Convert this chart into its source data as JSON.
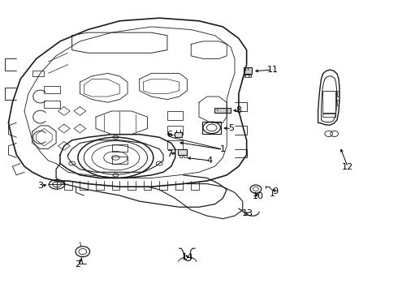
{
  "background_color": "#ffffff",
  "line_color": "#1a1a1a",
  "figsize": [
    4.9,
    3.6
  ],
  "dpi": 100,
  "label_positions": {
    "1": [
      0.56,
      0.485,
      0.495,
      0.51
    ],
    "2": [
      0.195,
      0.095,
      0.205,
      0.135
    ],
    "3": [
      0.1,
      0.365,
      0.14,
      0.368
    ],
    "4": [
      0.525,
      0.45,
      0.46,
      0.465
    ],
    "5": [
      0.58,
      0.56,
      0.545,
      0.562
    ],
    "6": [
      0.43,
      0.535,
      0.448,
      0.538
    ],
    "7": [
      0.43,
      0.475,
      0.458,
      0.477
    ],
    "8": [
      0.597,
      0.62,
      0.563,
      0.622
    ],
    "9": [
      0.685,
      0.345,
      0.672,
      0.358
    ],
    "10": [
      0.65,
      0.33,
      0.645,
      0.348
    ],
    "11": [
      0.682,
      0.76,
      0.642,
      0.754
    ],
    "12": [
      0.87,
      0.43,
      0.84,
      0.5
    ],
    "13": [
      0.62,
      0.27,
      0.61,
      0.285
    ],
    "14": [
      0.475,
      0.12,
      0.462,
      0.14
    ]
  }
}
